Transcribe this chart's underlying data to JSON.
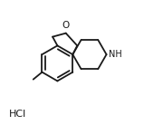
{
  "background_color": "#ffffff",
  "line_color": "#1a1a1a",
  "line_width": 1.3,
  "O_text": "O",
  "NH_text": "NH",
  "HCl_text": "HCl",
  "figsize": [
    1.8,
    1.38
  ],
  "dpi": 100
}
